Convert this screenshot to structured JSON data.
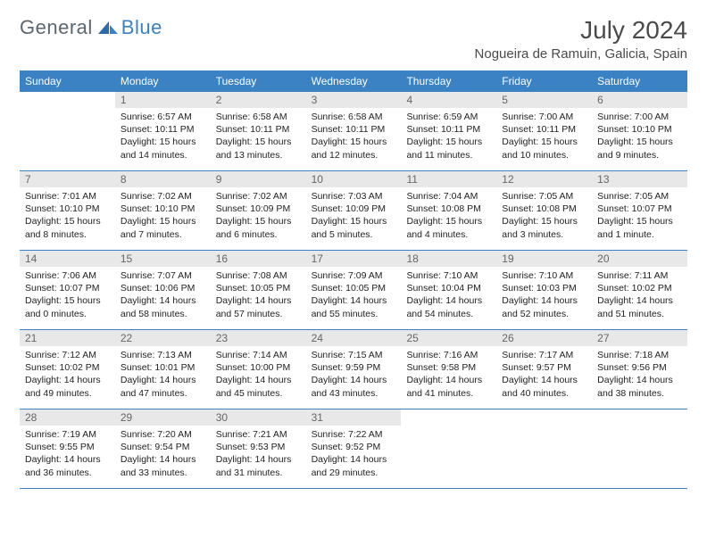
{
  "brand": {
    "part1": "General",
    "part2": "Blue"
  },
  "title": "July 2024",
  "location": "Nogueira de Ramuin, Galicia, Spain",
  "colors": {
    "header_bg": "#3b82c4",
    "header_text": "#ffffff",
    "daynum_bg": "#e8e8e8",
    "daynum_text": "#666666",
    "body_text": "#222222",
    "brand_gray": "#5a6670",
    "brand_blue": "#3b82c4",
    "title_color": "#4a4a4a"
  },
  "weekdays": [
    "Sunday",
    "Monday",
    "Tuesday",
    "Wednesday",
    "Thursday",
    "Friday",
    "Saturday"
  ],
  "weeks": [
    [
      {
        "n": "",
        "lines": []
      },
      {
        "n": "1",
        "lines": [
          "Sunrise: 6:57 AM",
          "Sunset: 10:11 PM",
          "Daylight: 15 hours",
          "and 14 minutes."
        ]
      },
      {
        "n": "2",
        "lines": [
          "Sunrise: 6:58 AM",
          "Sunset: 10:11 PM",
          "Daylight: 15 hours",
          "and 13 minutes."
        ]
      },
      {
        "n": "3",
        "lines": [
          "Sunrise: 6:58 AM",
          "Sunset: 10:11 PM",
          "Daylight: 15 hours",
          "and 12 minutes."
        ]
      },
      {
        "n": "4",
        "lines": [
          "Sunrise: 6:59 AM",
          "Sunset: 10:11 PM",
          "Daylight: 15 hours",
          "and 11 minutes."
        ]
      },
      {
        "n": "5",
        "lines": [
          "Sunrise: 7:00 AM",
          "Sunset: 10:11 PM",
          "Daylight: 15 hours",
          "and 10 minutes."
        ]
      },
      {
        "n": "6",
        "lines": [
          "Sunrise: 7:00 AM",
          "Sunset: 10:10 PM",
          "Daylight: 15 hours",
          "and 9 minutes."
        ]
      }
    ],
    [
      {
        "n": "7",
        "lines": [
          "Sunrise: 7:01 AM",
          "Sunset: 10:10 PM",
          "Daylight: 15 hours",
          "and 8 minutes."
        ]
      },
      {
        "n": "8",
        "lines": [
          "Sunrise: 7:02 AM",
          "Sunset: 10:10 PM",
          "Daylight: 15 hours",
          "and 7 minutes."
        ]
      },
      {
        "n": "9",
        "lines": [
          "Sunrise: 7:02 AM",
          "Sunset: 10:09 PM",
          "Daylight: 15 hours",
          "and 6 minutes."
        ]
      },
      {
        "n": "10",
        "lines": [
          "Sunrise: 7:03 AM",
          "Sunset: 10:09 PM",
          "Daylight: 15 hours",
          "and 5 minutes."
        ]
      },
      {
        "n": "11",
        "lines": [
          "Sunrise: 7:04 AM",
          "Sunset: 10:08 PM",
          "Daylight: 15 hours",
          "and 4 minutes."
        ]
      },
      {
        "n": "12",
        "lines": [
          "Sunrise: 7:05 AM",
          "Sunset: 10:08 PM",
          "Daylight: 15 hours",
          "and 3 minutes."
        ]
      },
      {
        "n": "13",
        "lines": [
          "Sunrise: 7:05 AM",
          "Sunset: 10:07 PM",
          "Daylight: 15 hours",
          "and 1 minute."
        ]
      }
    ],
    [
      {
        "n": "14",
        "lines": [
          "Sunrise: 7:06 AM",
          "Sunset: 10:07 PM",
          "Daylight: 15 hours",
          "and 0 minutes."
        ]
      },
      {
        "n": "15",
        "lines": [
          "Sunrise: 7:07 AM",
          "Sunset: 10:06 PM",
          "Daylight: 14 hours",
          "and 58 minutes."
        ]
      },
      {
        "n": "16",
        "lines": [
          "Sunrise: 7:08 AM",
          "Sunset: 10:05 PM",
          "Daylight: 14 hours",
          "and 57 minutes."
        ]
      },
      {
        "n": "17",
        "lines": [
          "Sunrise: 7:09 AM",
          "Sunset: 10:05 PM",
          "Daylight: 14 hours",
          "and 55 minutes."
        ]
      },
      {
        "n": "18",
        "lines": [
          "Sunrise: 7:10 AM",
          "Sunset: 10:04 PM",
          "Daylight: 14 hours",
          "and 54 minutes."
        ]
      },
      {
        "n": "19",
        "lines": [
          "Sunrise: 7:10 AM",
          "Sunset: 10:03 PM",
          "Daylight: 14 hours",
          "and 52 minutes."
        ]
      },
      {
        "n": "20",
        "lines": [
          "Sunrise: 7:11 AM",
          "Sunset: 10:02 PM",
          "Daylight: 14 hours",
          "and 51 minutes."
        ]
      }
    ],
    [
      {
        "n": "21",
        "lines": [
          "Sunrise: 7:12 AM",
          "Sunset: 10:02 PM",
          "Daylight: 14 hours",
          "and 49 minutes."
        ]
      },
      {
        "n": "22",
        "lines": [
          "Sunrise: 7:13 AM",
          "Sunset: 10:01 PM",
          "Daylight: 14 hours",
          "and 47 minutes."
        ]
      },
      {
        "n": "23",
        "lines": [
          "Sunrise: 7:14 AM",
          "Sunset: 10:00 PM",
          "Daylight: 14 hours",
          "and 45 minutes."
        ]
      },
      {
        "n": "24",
        "lines": [
          "Sunrise: 7:15 AM",
          "Sunset: 9:59 PM",
          "Daylight: 14 hours",
          "and 43 minutes."
        ]
      },
      {
        "n": "25",
        "lines": [
          "Sunrise: 7:16 AM",
          "Sunset: 9:58 PM",
          "Daylight: 14 hours",
          "and 41 minutes."
        ]
      },
      {
        "n": "26",
        "lines": [
          "Sunrise: 7:17 AM",
          "Sunset: 9:57 PM",
          "Daylight: 14 hours",
          "and 40 minutes."
        ]
      },
      {
        "n": "27",
        "lines": [
          "Sunrise: 7:18 AM",
          "Sunset: 9:56 PM",
          "Daylight: 14 hours",
          "and 38 minutes."
        ]
      }
    ],
    [
      {
        "n": "28",
        "lines": [
          "Sunrise: 7:19 AM",
          "Sunset: 9:55 PM",
          "Daylight: 14 hours",
          "and 36 minutes."
        ]
      },
      {
        "n": "29",
        "lines": [
          "Sunrise: 7:20 AM",
          "Sunset: 9:54 PM",
          "Daylight: 14 hours",
          "and 33 minutes."
        ]
      },
      {
        "n": "30",
        "lines": [
          "Sunrise: 7:21 AM",
          "Sunset: 9:53 PM",
          "Daylight: 14 hours",
          "and 31 minutes."
        ]
      },
      {
        "n": "31",
        "lines": [
          "Sunrise: 7:22 AM",
          "Sunset: 9:52 PM",
          "Daylight: 14 hours",
          "and 29 minutes."
        ]
      },
      {
        "n": "",
        "lines": []
      },
      {
        "n": "",
        "lines": []
      },
      {
        "n": "",
        "lines": []
      }
    ]
  ]
}
